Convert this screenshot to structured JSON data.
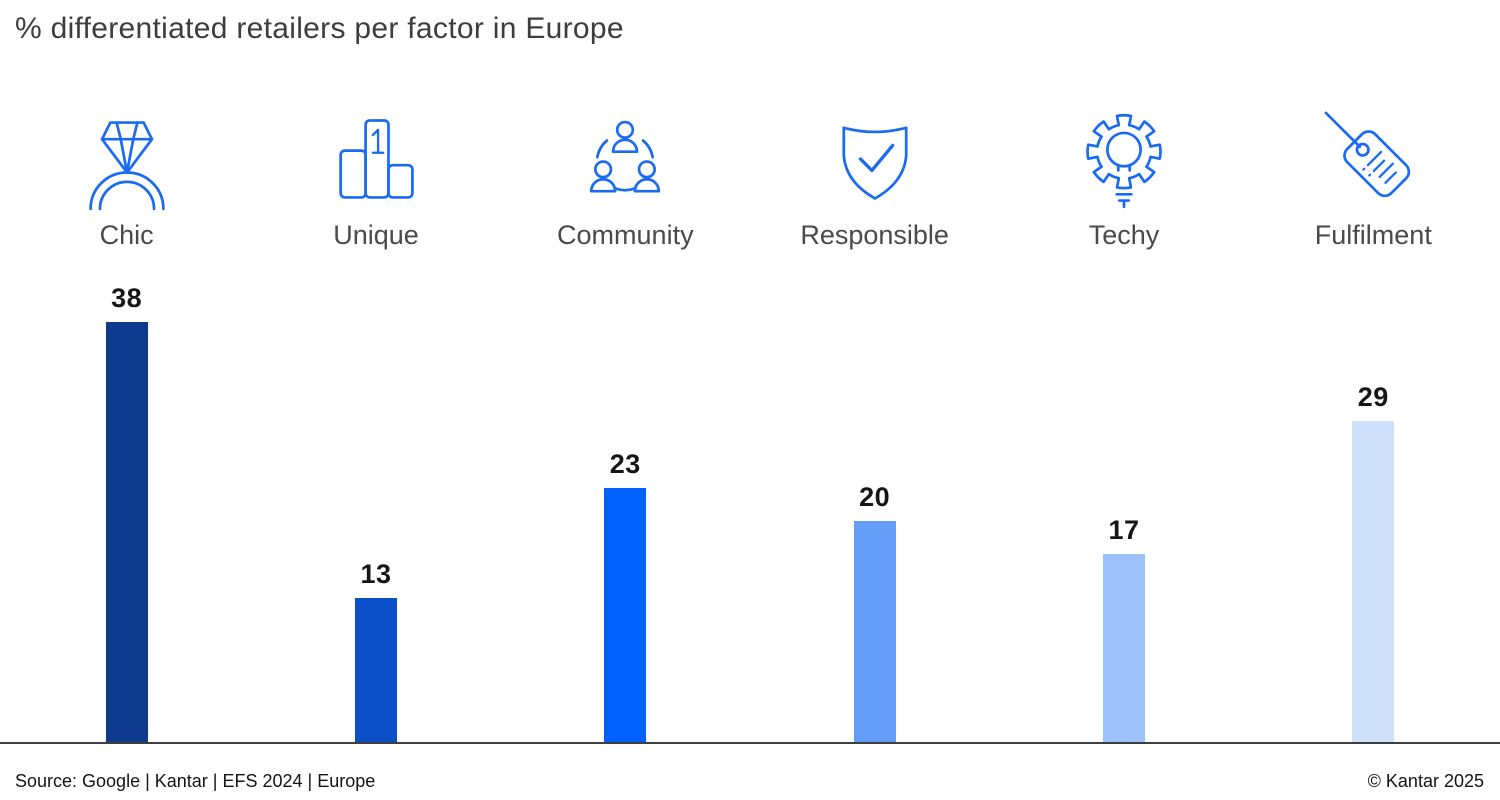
{
  "title": "% differentiated retailers per factor in Europe",
  "footer": {
    "source": "Source: Google | Kantar | EFS 2024 | Europe",
    "copyright": "© Kantar 2025"
  },
  "chart_data": {
    "type": "bar",
    "title": "% differentiated retailers per factor in Europe",
    "categories": [
      "Chic",
      "Unique",
      "Community",
      "Responsible",
      "Techy",
      "Fulfilment"
    ],
    "values": [
      38,
      13,
      23,
      20,
      17,
      29
    ],
    "ylim": [
      0,
      38
    ],
    "grid": false,
    "value_labels": true,
    "legend": "none",
    "bar_colors": [
      "#0d3a8d",
      "#0b4fc8",
      "#0061fe",
      "#659ef9",
      "#9ec2fb",
      "#cfe0fb"
    ],
    "icon_names": [
      "diamond-ring-icon",
      "podium-first-place-icon",
      "community-people-icon",
      "shield-check-icon",
      "gear-lightbulb-icon",
      "price-tag-icon"
    ],
    "icon_color": "#1a6af2",
    "axis_color": "#3f3f3f"
  }
}
